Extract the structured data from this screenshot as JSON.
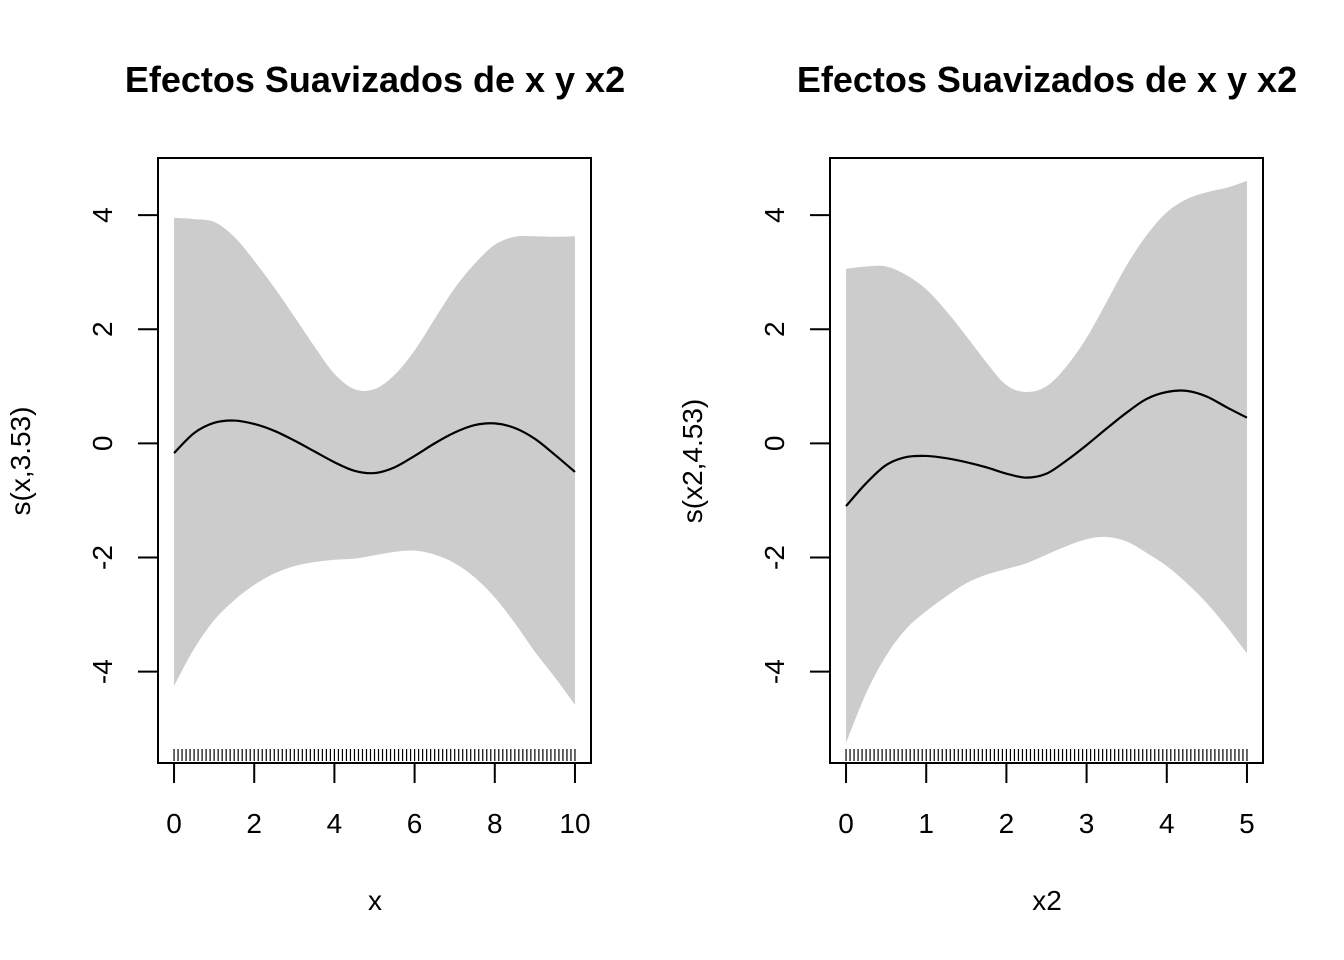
{
  "chart_data": [
    {
      "type": "line",
      "title": "Efectos Suavizados de x y x2",
      "xlabel": "x",
      "ylabel": "s(x,3.53)",
      "xlim": [
        -0.4,
        10.4
      ],
      "ylim": [
        -5.6,
        5.0
      ],
      "x_ticks": [
        0,
        2,
        4,
        6,
        8,
        10
      ],
      "x_tick_labels": [
        "0",
        "2",
        "4",
        "6",
        "8",
        "10"
      ],
      "y_ticks": [
        -4,
        -2,
        0,
        2,
        4
      ],
      "y_tick_labels": [
        "-4",
        "-2",
        "0",
        "2",
        "4"
      ],
      "legend": "none",
      "grid": false,
      "band_color": "#cccccc",
      "line_color": "#000000",
      "series": [
        {
          "role": "fit",
          "x": [
            0,
            0.5,
            1,
            1.5,
            2,
            2.5,
            3,
            3.5,
            4,
            4.5,
            5,
            5.5,
            6,
            6.5,
            7,
            7.5,
            8,
            8.5,
            9,
            9.5,
            10
          ],
          "values": [
            -0.17,
            0.18,
            0.36,
            0.4,
            0.34,
            0.22,
            0.05,
            -0.14,
            -0.33,
            -0.48,
            -0.52,
            -0.42,
            -0.22,
            0.0,
            0.19,
            0.32,
            0.35,
            0.27,
            0.08,
            -0.2,
            -0.5
          ]
        },
        {
          "role": "upper",
          "x": [
            0,
            0.5,
            1,
            1.5,
            2,
            2.5,
            3,
            3.5,
            4,
            4.5,
            5,
            5.5,
            6,
            6.5,
            7,
            7.5,
            8,
            8.5,
            9,
            9.5,
            10
          ],
          "values": [
            3.95,
            3.93,
            3.88,
            3.62,
            3.2,
            2.73,
            2.22,
            1.7,
            1.22,
            0.95,
            0.95,
            1.2,
            1.63,
            2.18,
            2.72,
            3.15,
            3.48,
            3.62,
            3.63,
            3.62,
            3.63
          ]
        },
        {
          "role": "lower",
          "x": [
            0,
            0.5,
            1,
            1.5,
            2,
            2.5,
            3,
            3.5,
            4,
            4.5,
            5,
            5.5,
            6,
            6.5,
            7,
            7.5,
            8,
            8.5,
            9,
            9.5,
            10
          ],
          "values": [
            -4.25,
            -3.6,
            -3.1,
            -2.75,
            -2.48,
            -2.28,
            -2.15,
            -2.08,
            -2.04,
            -2.02,
            -1.96,
            -1.9,
            -1.88,
            -1.95,
            -2.1,
            -2.35,
            -2.7,
            -3.15,
            -3.65,
            -4.1,
            -4.58
          ]
        }
      ],
      "rug_range": [
        0,
        10
      ],
      "rug_count": 101
    },
    {
      "type": "line",
      "title": "Efectos Suavizados de x y x2",
      "xlabel": "x2",
      "ylabel": "s(x2,4.53)",
      "xlim": [
        -0.2,
        5.2
      ],
      "ylim": [
        -5.6,
        5.0
      ],
      "x_ticks": [
        0,
        1,
        2,
        3,
        4,
        5
      ],
      "x_tick_labels": [
        "0",
        "1",
        "2",
        "3",
        "4",
        "5"
      ],
      "y_ticks": [
        -4,
        -2,
        0,
        2,
        4
      ],
      "y_tick_labels": [
        "-4",
        "-2",
        "0",
        "2",
        "4"
      ],
      "legend": "none",
      "grid": false,
      "band_color": "#cccccc",
      "line_color": "#000000",
      "series": [
        {
          "role": "fit",
          "x": [
            0,
            0.25,
            0.5,
            0.75,
            1,
            1.25,
            1.5,
            1.75,
            2,
            2.25,
            2.5,
            2.75,
            3,
            3.25,
            3.5,
            3.75,
            4,
            4.25,
            4.5,
            4.75,
            5
          ],
          "values": [
            -1.1,
            -0.7,
            -0.38,
            -0.24,
            -0.22,
            -0.26,
            -0.33,
            -0.42,
            -0.53,
            -0.6,
            -0.53,
            -0.3,
            -0.03,
            0.26,
            0.54,
            0.78,
            0.9,
            0.92,
            0.82,
            0.63,
            0.45
          ]
        },
        {
          "role": "upper",
          "x": [
            0,
            0.25,
            0.5,
            0.75,
            1,
            1.25,
            1.5,
            1.75,
            2,
            2.25,
            2.5,
            2.75,
            3,
            3.25,
            3.5,
            3.75,
            4,
            4.25,
            4.5,
            4.75,
            5
          ],
          "values": [
            3.06,
            3.1,
            3.1,
            2.95,
            2.7,
            2.32,
            1.88,
            1.42,
            1.02,
            0.9,
            1.0,
            1.35,
            1.85,
            2.48,
            3.12,
            3.65,
            4.05,
            4.28,
            4.4,
            4.48,
            4.6
          ]
        },
        {
          "role": "lower",
          "x": [
            0,
            0.25,
            0.5,
            0.75,
            1,
            1.25,
            1.5,
            1.75,
            2,
            2.25,
            2.5,
            2.75,
            3,
            3.25,
            3.5,
            3.75,
            4,
            4.25,
            4.5,
            4.75,
            5
          ],
          "values": [
            -5.25,
            -4.38,
            -3.72,
            -3.25,
            -2.94,
            -2.68,
            -2.45,
            -2.3,
            -2.2,
            -2.1,
            -1.95,
            -1.8,
            -1.68,
            -1.64,
            -1.72,
            -1.92,
            -2.15,
            -2.45,
            -2.8,
            -3.22,
            -3.68
          ]
        }
      ],
      "rug_range": [
        0,
        5
      ],
      "rug_count": 101
    }
  ]
}
